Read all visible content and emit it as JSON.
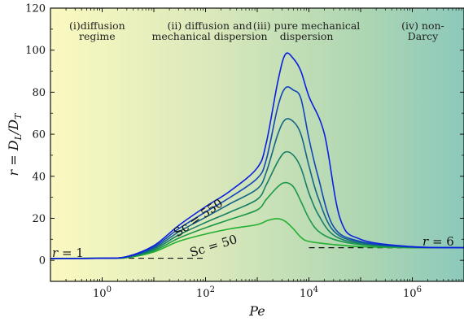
{
  "chart_data": {
    "type": "line",
    "x_scale": "log",
    "xlim": [
      0.1,
      10000000
    ],
    "ylim": [
      -10,
      120
    ],
    "xlabel": "Pe",
    "ylabel": "r = D_L/D_T",
    "x_ticks": [
      {
        "value": 1,
        "label": "10",
        "sup": "0"
      },
      {
        "value": 100,
        "label": "10",
        "sup": "2"
      },
      {
        "value": 10000,
        "label": "10",
        "sup": "4"
      },
      {
        "value": 1000000,
        "label": "10",
        "sup": "6"
      }
    ],
    "y_ticks": [
      0,
      20,
      40,
      60,
      80,
      100,
      120
    ],
    "background_gradient": [
      "#fbf9c0",
      "#d9e8bb",
      "#aed6b2",
      "#8cc9bb"
    ],
    "regions": [
      {
        "line1": "(i)diffusion",
        "line2": "regime",
        "x": 0.8
      },
      {
        "line1": "(ii) diffusion and",
        "line2": "mechanical dispersion",
        "x": 120
      },
      {
        "line1": "(iii) pure mechanical",
        "line2": "dispersion",
        "x": 9000
      },
      {
        "line1": "(iv) non-",
        "line2": "Darcy",
        "x": 1600000
      }
    ],
    "series": [
      {
        "name": "Sc = 50",
        "color": "#22b030",
        "x": [
          0.1,
          1,
          3,
          10,
          30,
          100,
          300,
          1000,
          1600,
          2500,
          3500,
          5000,
          7000,
          10000,
          30000,
          100000,
          1000000,
          10000000
        ],
        "y": [
          0.9,
          1,
          1.3,
          4,
          9,
          12.5,
          15,
          17,
          19,
          19.8,
          18.5,
          15,
          11,
          9,
          7.5,
          6.5,
          6,
          6
        ]
      },
      {
        "name": "",
        "color": "#1c9948",
        "x": [
          0.1,
          1,
          3,
          10,
          30,
          100,
          300,
          1000,
          1500,
          2500,
          3500,
          5000,
          7000,
          10000,
          15000,
          30000,
          100000,
          1000000,
          10000000
        ],
        "y": [
          0.9,
          1,
          1.4,
          4.6,
          10.5,
          15.5,
          19.5,
          24,
          29,
          35,
          37,
          35,
          28,
          20,
          14,
          10,
          7.5,
          6.1,
          6
        ]
      },
      {
        "name": "",
        "color": "#177f66",
        "x": [
          0.1,
          1,
          3,
          10,
          30,
          100,
          300,
          1000,
          1500,
          2500,
          3500,
          5000,
          7000,
          10000,
          15000,
          30000,
          100000,
          1000000,
          10000000
        ],
        "y": [
          0.9,
          1,
          1.5,
          5.2,
          12,
          18,
          23,
          29,
          36,
          47,
          51.5,
          50,
          44,
          32,
          22,
          12,
          8,
          6.2,
          6
        ]
      },
      {
        "name": "",
        "color": "#146688",
        "x": [
          0.1,
          1,
          3,
          10,
          30,
          100,
          300,
          1000,
          1500,
          2500,
          3500,
          5000,
          7000,
          10000,
          15000,
          30000,
          100000,
          1000000,
          10000000
        ],
        "y": [
          0.9,
          1,
          1.6,
          5.8,
          13.5,
          20.5,
          27,
          34,
          42,
          60,
          67,
          66,
          60,
          45,
          30,
          14,
          8.5,
          6.3,
          6
        ]
      },
      {
        "name": "",
        "color": "#1245b8",
        "x": [
          0.1,
          1,
          3,
          10,
          30,
          100,
          300,
          1000,
          1500,
          2500,
          3500,
          5000,
          7000,
          10000,
          15000,
          30000,
          100000,
          1000000,
          10000000
        ],
        "y": [
          0.9,
          1,
          1.7,
          6.4,
          15,
          23,
          30,
          39,
          48,
          73,
          82,
          81,
          77,
          58,
          40,
          16,
          9,
          6.4,
          6
        ]
      },
      {
        "name": "Sc = 550",
        "color": "#0a1fe0",
        "x": [
          0.1,
          1,
          3,
          10,
          30,
          100,
          300,
          1000,
          1500,
          2500,
          3500,
          5000,
          7000,
          10000,
          20000,
          40000,
          100000,
          1000000,
          10000000
        ],
        "y": [
          0.9,
          1,
          1.8,
          7,
          16.5,
          25.5,
          33,
          44,
          56,
          85,
          98,
          96,
          90,
          78,
          60,
          20,
          10,
          6.5,
          6
        ]
      }
    ],
    "dashed_lines": [
      {
        "x": [
          0.1,
          100
        ],
        "y": [
          1,
          1
        ]
      },
      {
        "x": [
          10000,
          10000000
        ],
        "y": [
          6,
          6
        ]
      }
    ],
    "annotations": {
      "r1": {
        "prefix": "r",
        "value": "= 1"
      },
      "r6": {
        "prefix": "r",
        "value": "= 6"
      },
      "sc550": "Sc = 550",
      "sc50": "Sc = 50"
    }
  }
}
